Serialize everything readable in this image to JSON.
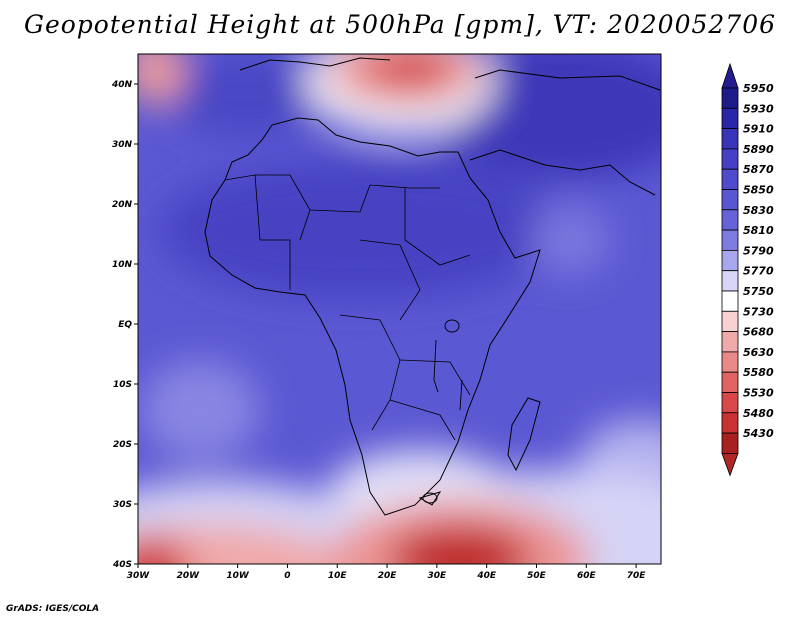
{
  "title": "Geopotential Height at 500hPa [gpm], VT: 2020052706",
  "credit": "GrADS: IGES/COLA",
  "map": {
    "lon_labels": [
      "30W",
      "20W",
      "10W",
      "0",
      "10E",
      "20E",
      "30E",
      "40E",
      "50E",
      "60E",
      "70E"
    ],
    "lat_labels": [
      "40N",
      "30N",
      "20N",
      "10N",
      "EQ",
      "10S",
      "20S",
      "30S",
      "40S"
    ]
  },
  "legend": {
    "values": [
      "5950",
      "5930",
      "5910",
      "5890",
      "5870",
      "5850",
      "5830",
      "5810",
      "5790",
      "5770",
      "5750",
      "5730",
      "5680",
      "5630",
      "5580",
      "5530",
      "5480",
      "5430"
    ],
    "colors": [
      "#1d1a8a",
      "#2a26a8",
      "#3835b8",
      "#4540c4",
      "#4f4ccc",
      "#5956d2",
      "#6663d8",
      "#7e7be0",
      "#a8a6ec",
      "#d8d6f6",
      "#ffffff",
      "#f8d2d2",
      "#f0aaaa",
      "#e88888",
      "#e06464",
      "#d84848",
      "#c83232",
      "#a82020"
    ],
    "max_arrow_color": "#221c90",
    "min_arrow_color": "#b02525"
  }
}
